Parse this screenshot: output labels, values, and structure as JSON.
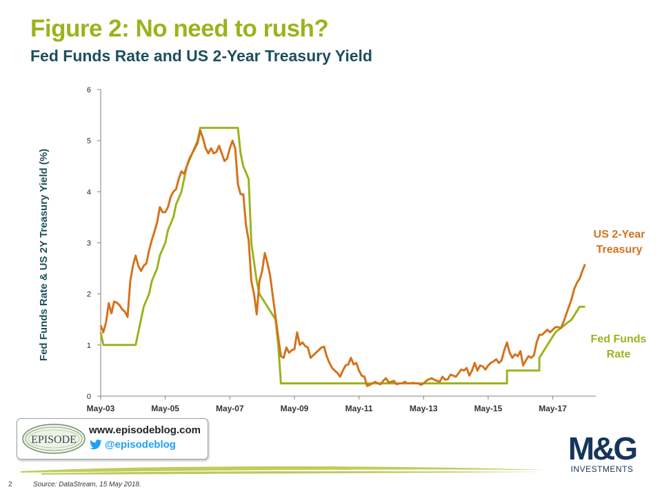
{
  "header": {
    "title": "Figure 2: No need to rush?",
    "subtitle": "Fed Funds Rate and US 2-Year Treasury Yield"
  },
  "colors": {
    "title": "#9bb31b",
    "subtitle": "#1d4f5c",
    "fed_funds": "#9bb31b",
    "treasury_2y": "#d4721b",
    "axis": "#7f7f7f"
  },
  "chart_data": {
    "type": "line",
    "title": "Fed Funds Rate and US 2-Year Treasury Yield",
    "xlabel": "",
    "ylabel": "Fed Funds Rate & US 2Y Treasury Yield (%)",
    "ylim": [
      0,
      6
    ],
    "yticks": [
      "0",
      "1",
      "2",
      "3",
      "4",
      "5",
      "6"
    ],
    "xlim": [
      "2003-05",
      "2018-09"
    ],
    "xticks": [
      {
        "label": "May-03",
        "date": "2003-05"
      },
      {
        "label": "May-05",
        "date": "2005-05"
      },
      {
        "label": "May-07",
        "date": "2007-05"
      },
      {
        "label": "May-09",
        "date": "2009-05"
      },
      {
        "label": "May-11",
        "date": "2011-05"
      },
      {
        "label": "May-13",
        "date": "2013-05"
      },
      {
        "label": "May-15",
        "date": "2015-05"
      },
      {
        "label": "May-17",
        "date": "2017-05"
      }
    ],
    "grid": false,
    "legend": "inline labels at right end of series",
    "series": [
      {
        "name": "Fed Funds Rate",
        "label_lines": [
          "Fed Funds",
          "Rate"
        ],
        "color": "#9bb31b",
        "points": [
          [
            "2003-05",
            1.25
          ],
          [
            "2003-06",
            1.0
          ],
          [
            "2004-06",
            1.0
          ],
          [
            "2004-07",
            1.25
          ],
          [
            "2004-08",
            1.5
          ],
          [
            "2004-09",
            1.75
          ],
          [
            "2004-11",
            2.0
          ],
          [
            "2004-12",
            2.25
          ],
          [
            "2005-02",
            2.5
          ],
          [
            "2005-03",
            2.75
          ],
          [
            "2005-05",
            3.0
          ],
          [
            "2005-06",
            3.25
          ],
          [
            "2005-08",
            3.5
          ],
          [
            "2005-09",
            3.75
          ],
          [
            "2005-11",
            4.0
          ],
          [
            "2005-12",
            4.25
          ],
          [
            "2006-01",
            4.5
          ],
          [
            "2006-03",
            4.75
          ],
          [
            "2006-05",
            5.0
          ],
          [
            "2006-06",
            5.25
          ],
          [
            "2007-08",
            5.25
          ],
          [
            "2007-09",
            4.75
          ],
          [
            "2007-10",
            4.5
          ],
          [
            "2007-12",
            4.25
          ],
          [
            "2008-01",
            3.0
          ],
          [
            "2008-03",
            2.25
          ],
          [
            "2008-04",
            2.0
          ],
          [
            "2008-10",
            1.5
          ],
          [
            "2008-11",
            1.0
          ],
          [
            "2008-12",
            0.25
          ],
          [
            "2015-12",
            0.25
          ],
          [
            "2015-12",
            0.5
          ],
          [
            "2016-12",
            0.5
          ],
          [
            "2016-12",
            0.75
          ],
          [
            "2017-03",
            1.0
          ],
          [
            "2017-06",
            1.25
          ],
          [
            "2017-12",
            1.5
          ],
          [
            "2018-03",
            1.75
          ],
          [
            "2018-05",
            1.75
          ]
        ]
      },
      {
        "name": "US 2-Year Treasury",
        "label_lines": [
          "US 2-Year",
          "Treasury"
        ],
        "color": "#d4721b",
        "points": [
          [
            "2003-05",
            1.38
          ],
          [
            "2003-06",
            1.25
          ],
          [
            "2003-07",
            1.45
          ],
          [
            "2003-08",
            1.82
          ],
          [
            "2003-09",
            1.62
          ],
          [
            "2003-10",
            1.85
          ],
          [
            "2003-11",
            1.83
          ],
          [
            "2003-12",
            1.78
          ],
          [
            "2004-01",
            1.7
          ],
          [
            "2004-02",
            1.65
          ],
          [
            "2004-03",
            1.55
          ],
          [
            "2004-04",
            2.25
          ],
          [
            "2004-05",
            2.55
          ],
          [
            "2004-06",
            2.75
          ],
          [
            "2004-07",
            2.55
          ],
          [
            "2004-08",
            2.45
          ],
          [
            "2004-09",
            2.55
          ],
          [
            "2004-10",
            2.6
          ],
          [
            "2004-11",
            2.85
          ],
          [
            "2004-12",
            3.05
          ],
          [
            "2005-01",
            3.22
          ],
          [
            "2005-02",
            3.4
          ],
          [
            "2005-03",
            3.7
          ],
          [
            "2005-04",
            3.6
          ],
          [
            "2005-05",
            3.6
          ],
          [
            "2005-06",
            3.7
          ],
          [
            "2005-07",
            3.9
          ],
          [
            "2005-08",
            4.0
          ],
          [
            "2005-09",
            4.05
          ],
          [
            "2005-10",
            4.25
          ],
          [
            "2005-11",
            4.4
          ],
          [
            "2005-12",
            4.35
          ],
          [
            "2006-01",
            4.5
          ],
          [
            "2006-02",
            4.65
          ],
          [
            "2006-03",
            4.75
          ],
          [
            "2006-04",
            4.85
          ],
          [
            "2006-05",
            4.95
          ],
          [
            "2006-06",
            5.2
          ],
          [
            "2006-07",
            5.05
          ],
          [
            "2006-08",
            4.85
          ],
          [
            "2006-09",
            4.75
          ],
          [
            "2006-10",
            4.85
          ],
          [
            "2006-11",
            4.75
          ],
          [
            "2006-12",
            4.78
          ],
          [
            "2007-01",
            4.9
          ],
          [
            "2007-02",
            4.75
          ],
          [
            "2007-03",
            4.6
          ],
          [
            "2007-04",
            4.65
          ],
          [
            "2007-05",
            4.85
          ],
          [
            "2007-06",
            5.0
          ],
          [
            "2007-07",
            4.85
          ],
          [
            "2007-08",
            4.15
          ],
          [
            "2007-09",
            3.95
          ],
          [
            "2007-10",
            3.95
          ],
          [
            "2007-11",
            3.35
          ],
          [
            "2007-12",
            3.05
          ],
          [
            "2008-01",
            2.25
          ],
          [
            "2008-02",
            2.0
          ],
          [
            "2008-03",
            1.6
          ],
          [
            "2008-04",
            2.25
          ],
          [
            "2008-05",
            2.45
          ],
          [
            "2008-06",
            2.8
          ],
          [
            "2008-07",
            2.6
          ],
          [
            "2008-08",
            2.35
          ],
          [
            "2008-09",
            1.95
          ],
          [
            "2008-10",
            1.55
          ],
          [
            "2008-11",
            1.15
          ],
          [
            "2008-12",
            0.78
          ],
          [
            "2009-01",
            0.75
          ],
          [
            "2009-02",
            0.95
          ],
          [
            "2009-03",
            0.85
          ],
          [
            "2009-04",
            0.9
          ],
          [
            "2009-05",
            0.92
          ],
          [
            "2009-06",
            1.25
          ],
          [
            "2009-07",
            1.0
          ],
          [
            "2009-08",
            1.05
          ],
          [
            "2009-09",
            0.98
          ],
          [
            "2009-10",
            0.95
          ],
          [
            "2009-11",
            0.75
          ],
          [
            "2009-12",
            0.8
          ],
          [
            "2010-01",
            0.85
          ],
          [
            "2010-02",
            0.9
          ],
          [
            "2010-03",
            0.95
          ],
          [
            "2010-04",
            0.97
          ],
          [
            "2010-05",
            0.78
          ],
          [
            "2010-06",
            0.65
          ],
          [
            "2010-07",
            0.55
          ],
          [
            "2010-08",
            0.5
          ],
          [
            "2010-09",
            0.45
          ],
          [
            "2010-10",
            0.38
          ],
          [
            "2010-11",
            0.5
          ],
          [
            "2010-12",
            0.6
          ],
          [
            "2011-01",
            0.62
          ],
          [
            "2011-02",
            0.75
          ],
          [
            "2011-03",
            0.62
          ],
          [
            "2011-04",
            0.65
          ],
          [
            "2011-05",
            0.5
          ],
          [
            "2011-06",
            0.4
          ],
          [
            "2011-07",
            0.38
          ],
          [
            "2011-08",
            0.2
          ],
          [
            "2011-09",
            0.22
          ],
          [
            "2011-10",
            0.25
          ],
          [
            "2011-11",
            0.28
          ],
          [
            "2011-12",
            0.25
          ],
          [
            "2012-01",
            0.23
          ],
          [
            "2012-02",
            0.3
          ],
          [
            "2012-03",
            0.35
          ],
          [
            "2012-04",
            0.27
          ],
          [
            "2012-05",
            0.28
          ],
          [
            "2012-06",
            0.3
          ],
          [
            "2012-07",
            0.23
          ],
          [
            "2012-08",
            0.25
          ],
          [
            "2012-09",
            0.25
          ],
          [
            "2012-10",
            0.28
          ],
          [
            "2012-11",
            0.25
          ],
          [
            "2012-12",
            0.25
          ],
          [
            "2013-01",
            0.26
          ],
          [
            "2013-02",
            0.25
          ],
          [
            "2013-03",
            0.25
          ],
          [
            "2013-04",
            0.22
          ],
          [
            "2013-05",
            0.25
          ],
          [
            "2013-06",
            0.3
          ],
          [
            "2013-07",
            0.33
          ],
          [
            "2013-08",
            0.35
          ],
          [
            "2013-09",
            0.32
          ],
          [
            "2013-10",
            0.3
          ],
          [
            "2013-11",
            0.28
          ],
          [
            "2013-12",
            0.38
          ],
          [
            "2014-01",
            0.32
          ],
          [
            "2014-02",
            0.33
          ],
          [
            "2014-03",
            0.42
          ],
          [
            "2014-04",
            0.4
          ],
          [
            "2014-05",
            0.38
          ],
          [
            "2014-06",
            0.45
          ],
          [
            "2014-07",
            0.52
          ],
          [
            "2014-08",
            0.5
          ],
          [
            "2014-09",
            0.55
          ],
          [
            "2014-10",
            0.4
          ],
          [
            "2014-11",
            0.5
          ],
          [
            "2014-12",
            0.65
          ],
          [
            "2015-01",
            0.5
          ],
          [
            "2015-02",
            0.6
          ],
          [
            "2015-03",
            0.58
          ],
          [
            "2015-04",
            0.52
          ],
          [
            "2015-05",
            0.6
          ],
          [
            "2015-06",
            0.65
          ],
          [
            "2015-07",
            0.68
          ],
          [
            "2015-08",
            0.72
          ],
          [
            "2015-09",
            0.65
          ],
          [
            "2015-10",
            0.7
          ],
          [
            "2015-11",
            0.9
          ],
          [
            "2015-12",
            1.05
          ],
          [
            "2016-01",
            0.85
          ],
          [
            "2016-02",
            0.75
          ],
          [
            "2016-03",
            0.82
          ],
          [
            "2016-04",
            0.78
          ],
          [
            "2016-05",
            0.88
          ],
          [
            "2016-06",
            0.6
          ],
          [
            "2016-07",
            0.7
          ],
          [
            "2016-08",
            0.78
          ],
          [
            "2016-09",
            0.75
          ],
          [
            "2016-10",
            0.8
          ],
          [
            "2016-11",
            1.05
          ],
          [
            "2016-12",
            1.2
          ],
          [
            "2017-01",
            1.2
          ],
          [
            "2017-02",
            1.25
          ],
          [
            "2017-03",
            1.3
          ],
          [
            "2017-04",
            1.25
          ],
          [
            "2017-05",
            1.3
          ],
          [
            "2017-06",
            1.35
          ],
          [
            "2017-07",
            1.35
          ],
          [
            "2017-08",
            1.33
          ],
          [
            "2017-09",
            1.45
          ],
          [
            "2017-10",
            1.6
          ],
          [
            "2017-11",
            1.75
          ],
          [
            "2017-12",
            1.9
          ],
          [
            "2018-01",
            2.1
          ],
          [
            "2018-02",
            2.22
          ],
          [
            "2018-03",
            2.3
          ],
          [
            "2018-04",
            2.45
          ],
          [
            "2018-05",
            2.58
          ]
        ]
      }
    ]
  },
  "footer": {
    "episode_logo_text": "EPISODE",
    "website": "www.episodeblog.com",
    "twitter_handle": "@episodeblog",
    "brand_word": "M&G",
    "brand_sub": "INVESTMENTS",
    "slide_number": "2",
    "source": "Source: DataStream, 15 May 2018."
  }
}
